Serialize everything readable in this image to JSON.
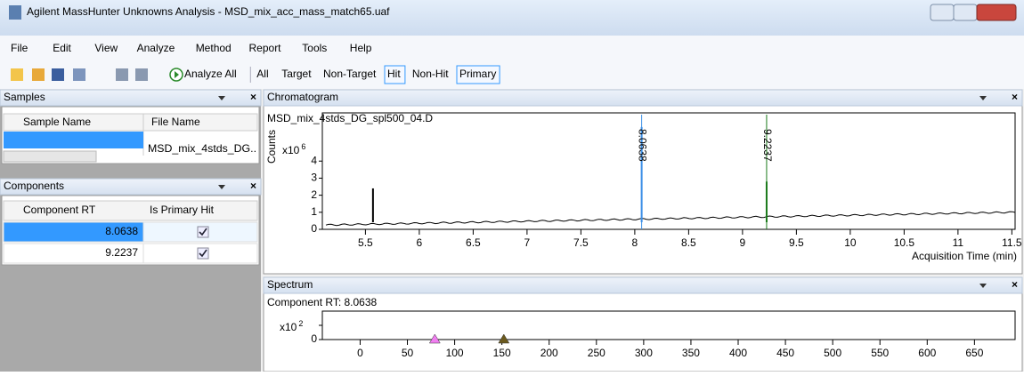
{
  "window": {
    "title": "Agilent MassHunter Unknowns Analysis - MSD_mix_acc_mass_match65.uaf"
  },
  "menu": [
    "File",
    "Edit",
    "View",
    "Analyze",
    "Method",
    "Report",
    "Tools",
    "Help"
  ],
  "toolbar": [
    {
      "label": "Analyze All"
    },
    {
      "label": "All"
    },
    {
      "label": "Target"
    },
    {
      "label": "Non-Target"
    },
    {
      "label": "Hit",
      "checked": true
    },
    {
      "label": "Non-Hit"
    },
    {
      "label": "Primary",
      "checked": true
    }
  ],
  "samples": {
    "title": "Samples",
    "columns": [
      "Sample Name",
      "File Name"
    ],
    "rows": [
      {
        "file_name": "MSD_mix_4stds_DG.."
      }
    ]
  },
  "components": {
    "title": "Components",
    "columns": [
      "Component RT",
      "Is Primary Hit"
    ],
    "rows": [
      {
        "rt": "8.0638",
        "primary": true
      },
      {
        "rt": "9.2237",
        "primary": true
      }
    ]
  },
  "chromatogram": {
    "type": "line",
    "title": "Chromatogram",
    "subtitle": "MSD_mix_4stds_DG_spl500_04.D",
    "ylabel": "Counts",
    "multiplier": "x10",
    "exponent": 6,
    "xlabel": "Acquisition Time (min)",
    "xlim": [
      5.1,
      11.53
    ],
    "ylim": [
      0,
      6.2
    ],
    "xticks": [
      5.5,
      6,
      6.5,
      7,
      7.5,
      8,
      8.5,
      9,
      9.5,
      10,
      10.5,
      11,
      11.5
    ],
    "yticks": [
      0,
      1,
      2,
      3,
      4
    ],
    "peaks": [
      {
        "rt": 5.57,
        "height": 2.4,
        "color": "#000000"
      },
      {
        "rt": 8.0638,
        "height": 6,
        "label": "8.0638",
        "color": "#3a8ee6"
      },
      {
        "rt": 9.2237,
        "height": 2.8,
        "label": "9.2237",
        "color": "#1a7a1a"
      }
    ]
  },
  "spectrum": {
    "type": "scatter",
    "title": "Spectrum",
    "subtitle": "Component RT: 8.0638",
    "multiplier": "x10",
    "exponent": 2,
    "xlim": [
      -40,
      693
    ],
    "yticks": [
      0
    ],
    "xticks": [
      0,
      50,
      100,
      150,
      200,
      250,
      300,
      350,
      400,
      450,
      500,
      550,
      600,
      650
    ],
    "markers": [
      {
        "x": 79,
        "color": "#f07ef0"
      },
      {
        "x": 152,
        "color": "#6b5a1e"
      }
    ]
  }
}
